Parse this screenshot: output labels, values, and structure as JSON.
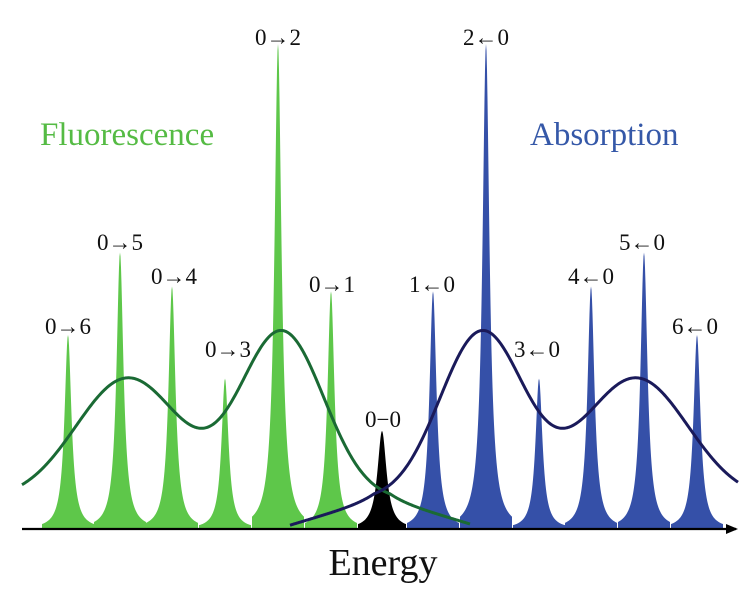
{
  "diagram": {
    "fluorescence_title": "Fluorescence",
    "absorption_title": "Absorption",
    "x_axis_label": "Energy",
    "origin_label": "0−0",
    "fluorescence_peaks": [
      {
        "label": "0→6",
        "relative_intensity": 0.4
      },
      {
        "label": "0→5",
        "relative_intensity": 0.57
      },
      {
        "label": "0→4",
        "relative_intensity": 0.5
      },
      {
        "label": "0→3",
        "relative_intensity": 0.31
      },
      {
        "label": "0→2",
        "relative_intensity": 1.0
      },
      {
        "label": "0→1",
        "relative_intensity": 0.49
      }
    ],
    "absorption_peaks": [
      {
        "label": "1←0",
        "relative_intensity": 0.49
      },
      {
        "label": "2←0",
        "relative_intensity": 1.0
      },
      {
        "label": "3←0",
        "relative_intensity": 0.31
      },
      {
        "label": "4←0",
        "relative_intensity": 0.5
      },
      {
        "label": "5←0",
        "relative_intensity": 0.57
      },
      {
        "label": "6←0",
        "relative_intensity": 0.4
      }
    ],
    "colors": {
      "fluorescence": "#5ec74a",
      "fluorescence_text": "#55bb44",
      "fluorescence_envelope": "#1a6a34",
      "absorption": "#3550a8",
      "absorption_text": "#3558a8",
      "absorption_envelope": "#1a1a5a",
      "origin": "#000000",
      "axis": "#000000"
    }
  }
}
